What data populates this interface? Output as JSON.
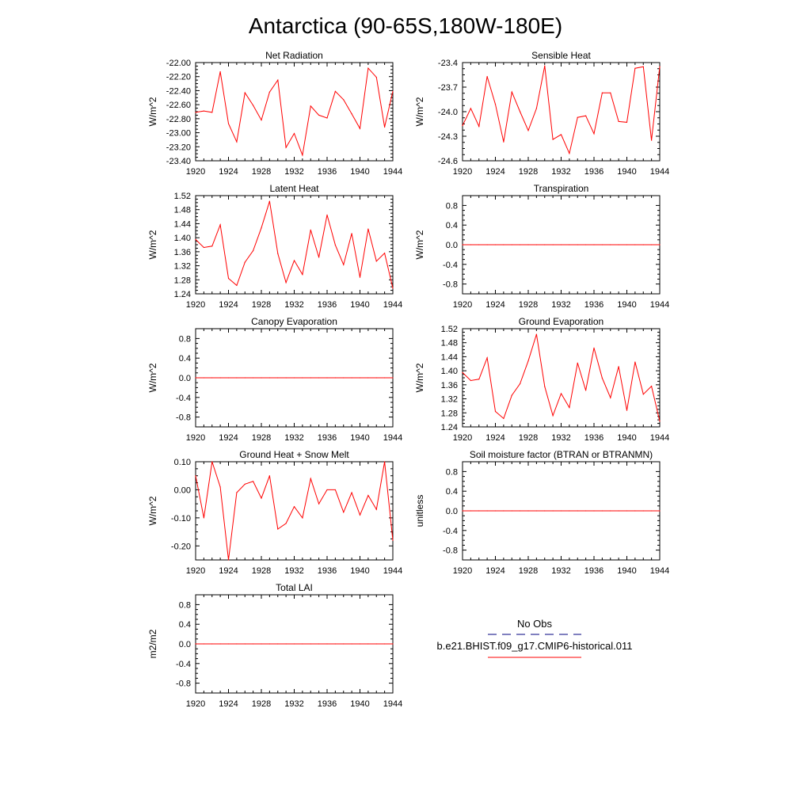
{
  "page": {
    "title": "Antarctica (90-65S,180W-180E)"
  },
  "colors": {
    "model_line": "#ff0000",
    "obs_line": "#00007f",
    "frame": "#000000"
  },
  "chart_data": [
    {
      "type": "line",
      "title": "Net Radiation",
      "ylabel": "W/m^2",
      "xlabel": "",
      "xlim": [
        1920,
        1944
      ],
      "ylim": [
        -23.4,
        -22.0
      ],
      "xticks": [
        1920,
        1924,
        1928,
        1932,
        1936,
        1940,
        1944
      ],
      "yticks": [
        -23.4,
        -23.2,
        -23.0,
        -22.8,
        -22.6,
        -22.4,
        -22.2,
        -22.0
      ],
      "ytick_labels": [
        "-23.40",
        "-23.20",
        "-23.00",
        "-22.80",
        "-22.60",
        "-22.40",
        "-22.20",
        "-22.00"
      ],
      "grid": false,
      "x": [
        1920,
        1921,
        1922,
        1923,
        1924,
        1925,
        1926,
        1927,
        1928,
        1929,
        1930,
        1931,
        1932,
        1933,
        1934,
        1935,
        1936,
        1937,
        1938,
        1939,
        1940,
        1941,
        1942,
        1943,
        1944
      ],
      "series": [
        {
          "name": "b.e21.BHIST.f09_g17.CMIP6-historical.011",
          "values": [
            -22.71,
            -22.69,
            -22.71,
            -22.13,
            -22.87,
            -23.13,
            -22.43,
            -22.61,
            -22.82,
            -22.42,
            -22.25,
            -23.21,
            -23.01,
            -23.32,
            -22.62,
            -22.75,
            -22.79,
            -22.41,
            -22.53,
            -22.73,
            -22.94,
            -22.08,
            -22.21,
            -22.92,
            -22.41
          ]
        }
      ]
    },
    {
      "type": "line",
      "title": "Sensible Heat",
      "ylabel": "W/m^2",
      "xlabel": "",
      "xlim": [
        1920,
        1944
      ],
      "ylim": [
        -24.6,
        -23.4
      ],
      "xticks": [
        1920,
        1924,
        1928,
        1932,
        1936,
        1940,
        1944
      ],
      "yticks": [
        -24.6,
        -24.3,
        -24.0,
        -23.7,
        -23.4
      ],
      "ytick_labels": [
        "-24.6",
        "-24.3",
        "-24.0",
        "-23.7",
        "-23.4"
      ],
      "grid": false,
      "x": [
        1920,
        1921,
        1922,
        1923,
        1924,
        1925,
        1926,
        1927,
        1928,
        1929,
        1930,
        1931,
        1932,
        1933,
        1934,
        1935,
        1936,
        1937,
        1938,
        1939,
        1940,
        1941,
        1942,
        1943,
        1944
      ],
      "series": [
        {
          "name": "b.e21.BHIST.f09_g17.CMIP6-historical.011",
          "values": [
            -24.17,
            -23.96,
            -24.18,
            -23.57,
            -23.91,
            -24.37,
            -23.76,
            -24.0,
            -24.23,
            -23.96,
            -23.44,
            -24.34,
            -24.28,
            -24.51,
            -24.07,
            -24.05,
            -24.27,
            -23.77,
            -23.77,
            -24.12,
            -24.13,
            -23.47,
            -23.45,
            -24.35,
            -23.45
          ]
        }
      ]
    },
    {
      "type": "line",
      "title": "Latent Heat",
      "ylabel": "W/m^2",
      "xlabel": "",
      "xlim": [
        1920,
        1944
      ],
      "ylim": [
        1.24,
        1.52
      ],
      "xticks": [
        1920,
        1924,
        1928,
        1932,
        1936,
        1940,
        1944
      ],
      "yticks": [
        1.24,
        1.28,
        1.32,
        1.36,
        1.4,
        1.44,
        1.48,
        1.52
      ],
      "ytick_labels": [
        "1.24",
        "1.28",
        "1.32",
        "1.36",
        "1.40",
        "1.44",
        "1.48",
        "1.52"
      ],
      "grid": false,
      "x": [
        1920,
        1921,
        1922,
        1923,
        1924,
        1925,
        1926,
        1927,
        1928,
        1929,
        1930,
        1931,
        1932,
        1933,
        1934,
        1935,
        1936,
        1937,
        1938,
        1939,
        1940,
        1941,
        1942,
        1943,
        1944
      ],
      "series": [
        {
          "name": "b.e21.BHIST.f09_g17.CMIP6-historical.011",
          "values": [
            1.395,
            1.372,
            1.376,
            1.437,
            1.284,
            1.264,
            1.33,
            1.363,
            1.428,
            1.504,
            1.355,
            1.272,
            1.335,
            1.295,
            1.422,
            1.344,
            1.465,
            1.379,
            1.323,
            1.412,
            1.287,
            1.425,
            1.333,
            1.356,
            1.256
          ]
        }
      ]
    },
    {
      "type": "line",
      "title": "Transpiration",
      "ylabel": "W/m^2",
      "xlabel": "",
      "xlim": [
        1920,
        1944
      ],
      "ylim": [
        -1.0,
        1.0
      ],
      "xticks": [
        1920,
        1924,
        1928,
        1932,
        1936,
        1940,
        1944
      ],
      "yticks": [
        -0.8,
        -0.4,
        0.0,
        0.4,
        0.8
      ],
      "ytick_labels": [
        "-0.8",
        "-0.4",
        "0.0",
        "0.4",
        "0.8"
      ],
      "grid": false,
      "x": [
        1920,
        1921,
        1922,
        1923,
        1924,
        1925,
        1926,
        1927,
        1928,
        1929,
        1930,
        1931,
        1932,
        1933,
        1934,
        1935,
        1936,
        1937,
        1938,
        1939,
        1940,
        1941,
        1942,
        1943,
        1944
      ],
      "series": [
        {
          "name": "b.e21.BHIST.f09_g17.CMIP6-historical.011",
          "values": [
            0,
            0,
            0,
            0,
            0,
            0,
            0,
            0,
            0,
            0,
            0,
            0,
            0,
            0,
            0,
            0,
            0,
            0,
            0,
            0,
            0,
            0,
            0,
            0,
            0
          ]
        }
      ]
    },
    {
      "type": "line",
      "title": "Canopy Evaporation",
      "ylabel": "W/m^2",
      "xlabel": "",
      "xlim": [
        1920,
        1944
      ],
      "ylim": [
        -1.0,
        1.0
      ],
      "xticks": [
        1920,
        1924,
        1928,
        1932,
        1936,
        1940,
        1944
      ],
      "yticks": [
        -0.8,
        -0.4,
        0.0,
        0.4,
        0.8
      ],
      "ytick_labels": [
        "-0.8",
        "-0.4",
        "0.0",
        "0.4",
        "0.8"
      ],
      "grid": false,
      "x": [
        1920,
        1921,
        1922,
        1923,
        1924,
        1925,
        1926,
        1927,
        1928,
        1929,
        1930,
        1931,
        1932,
        1933,
        1934,
        1935,
        1936,
        1937,
        1938,
        1939,
        1940,
        1941,
        1942,
        1943,
        1944
      ],
      "series": [
        {
          "name": "b.e21.BHIST.f09_g17.CMIP6-historical.011",
          "values": [
            0,
            0,
            0,
            0,
            0,
            0,
            0,
            0,
            0,
            0,
            0,
            0,
            0,
            0,
            0,
            0,
            0,
            0,
            0,
            0,
            0,
            0,
            0,
            0,
            0
          ]
        }
      ]
    },
    {
      "type": "line",
      "title": "Ground Evaporation",
      "ylabel": "W/m^2",
      "xlabel": "",
      "xlim": [
        1920,
        1944
      ],
      "ylim": [
        1.24,
        1.52
      ],
      "xticks": [
        1920,
        1924,
        1928,
        1932,
        1936,
        1940,
        1944
      ],
      "yticks": [
        1.24,
        1.28,
        1.32,
        1.36,
        1.4,
        1.44,
        1.48,
        1.52
      ],
      "ytick_labels": [
        "1.24",
        "1.28",
        "1.32",
        "1.36",
        "1.40",
        "1.44",
        "1.48",
        "1.52"
      ],
      "grid": false,
      "x": [
        1920,
        1921,
        1922,
        1923,
        1924,
        1925,
        1926,
        1927,
        1928,
        1929,
        1930,
        1931,
        1932,
        1933,
        1934,
        1935,
        1936,
        1937,
        1938,
        1939,
        1940,
        1941,
        1942,
        1943,
        1944
      ],
      "series": [
        {
          "name": "b.e21.BHIST.f09_g17.CMIP6-historical.011",
          "values": [
            1.395,
            1.372,
            1.376,
            1.437,
            1.284,
            1.264,
            1.33,
            1.363,
            1.428,
            1.504,
            1.355,
            1.272,
            1.335,
            1.295,
            1.422,
            1.344,
            1.465,
            1.379,
            1.323,
            1.412,
            1.287,
            1.425,
            1.333,
            1.356,
            1.256
          ]
        }
      ]
    },
    {
      "type": "line",
      "title": "Ground Heat + Snow Melt",
      "ylabel": "W/m^2",
      "xlabel": "",
      "xlim": [
        1920,
        1944
      ],
      "ylim": [
        -0.25,
        0.1
      ],
      "xticks": [
        1920,
        1924,
        1928,
        1932,
        1936,
        1940,
        1944
      ],
      "yticks": [
        -0.2,
        -0.1,
        0.0,
        0.1
      ],
      "ytick_labels": [
        "-0.20",
        "-0.10",
        "0.00",
        "0.10"
      ],
      "grid": false,
      "x": [
        1920,
        1921,
        1922,
        1923,
        1924,
        1925,
        1926,
        1927,
        1928,
        1929,
        1930,
        1931,
        1932,
        1933,
        1934,
        1935,
        1936,
        1937,
        1938,
        1939,
        1940,
        1941,
        1942,
        1943,
        1944
      ],
      "series": [
        {
          "name": "b.e21.BHIST.f09_g17.CMIP6-historical.011",
          "values": [
            0.05,
            -0.1,
            0.1,
            0.01,
            -0.25,
            -0.01,
            0.02,
            0.03,
            -0.03,
            0.05,
            -0.14,
            -0.12,
            -0.06,
            -0.1,
            0.04,
            -0.05,
            0.0,
            0.0,
            -0.08,
            -0.01,
            -0.09,
            -0.02,
            -0.07,
            0.1,
            -0.18
          ]
        }
      ]
    },
    {
      "type": "line",
      "title": "Soil moisture factor (BTRAN or BTRANMN)",
      "ylabel": "unitless",
      "xlabel": "",
      "xlim": [
        1920,
        1944
      ],
      "ylim": [
        -1.0,
        1.0
      ],
      "xticks": [
        1920,
        1924,
        1928,
        1932,
        1936,
        1940,
        1944
      ],
      "yticks": [
        -0.8,
        -0.4,
        0.0,
        0.4,
        0.8
      ],
      "ytick_labels": [
        "-0.8",
        "-0.4",
        "0.0",
        "0.4",
        "0.8"
      ],
      "grid": false,
      "x": [
        1920,
        1921,
        1922,
        1923,
        1924,
        1925,
        1926,
        1927,
        1928,
        1929,
        1930,
        1931,
        1932,
        1933,
        1934,
        1935,
        1936,
        1937,
        1938,
        1939,
        1940,
        1941,
        1942,
        1943,
        1944
      ],
      "series": [
        {
          "name": "b.e21.BHIST.f09_g17.CMIP6-historical.011",
          "values": [
            0,
            0,
            0,
            0,
            0,
            0,
            0,
            0,
            0,
            0,
            0,
            0,
            0,
            0,
            0,
            0,
            0,
            0,
            0,
            0,
            0,
            0,
            0,
            0,
            0
          ]
        }
      ]
    },
    {
      "type": "line",
      "title": "Total LAI",
      "ylabel": "m2/m2",
      "xlabel": "",
      "xlim": [
        1920,
        1944
      ],
      "ylim": [
        -1.0,
        1.0
      ],
      "xticks": [
        1920,
        1924,
        1928,
        1932,
        1936,
        1940,
        1944
      ],
      "yticks": [
        -0.8,
        -0.4,
        0.0,
        0.4,
        0.8
      ],
      "ytick_labels": [
        "-0.8",
        "-0.4",
        "0.0",
        "0.4",
        "0.8"
      ],
      "grid": false,
      "x": [
        1920,
        1921,
        1922,
        1923,
        1924,
        1925,
        1926,
        1927,
        1928,
        1929,
        1930,
        1931,
        1932,
        1933,
        1934,
        1935,
        1936,
        1937,
        1938,
        1939,
        1940,
        1941,
        1942,
        1943,
        1944
      ],
      "series": [
        {
          "name": "b.e21.BHIST.f09_g17.CMIP6-historical.011",
          "values": [
            0,
            0,
            0,
            0,
            0,
            0,
            0,
            0,
            0,
            0,
            0,
            0,
            0,
            0,
            0,
            0,
            0,
            0,
            0,
            0,
            0,
            0,
            0,
            0,
            0
          ]
        }
      ]
    }
  ],
  "legend": {
    "entries": [
      {
        "label": "No Obs",
        "style": "dashed",
        "color": "#00007f"
      },
      {
        "label": "b.e21.BHIST.f09_g17.CMIP6-historical.011",
        "style": "solid",
        "color": "#ff0000"
      }
    ]
  }
}
